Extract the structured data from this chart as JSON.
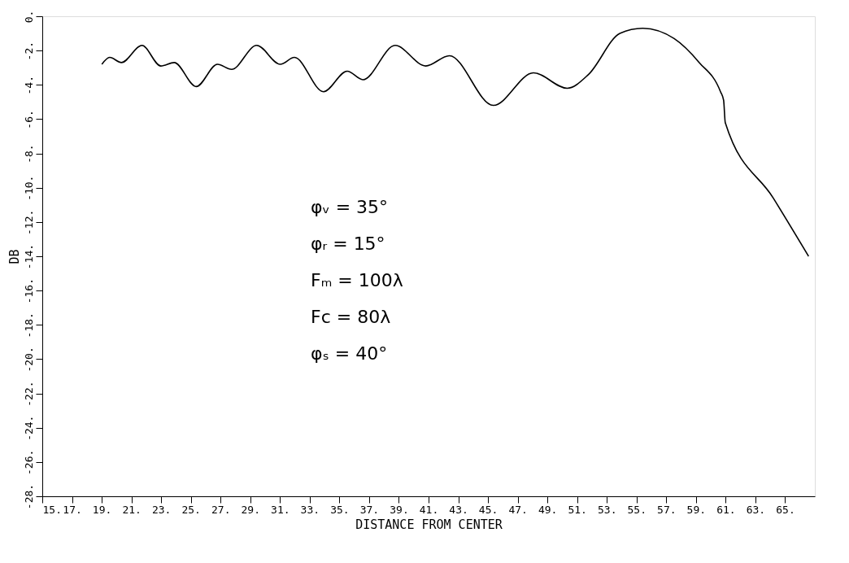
{
  "chart_data": {
    "type": "line",
    "xlabel": "DISTANCE FROM CENTER",
    "ylabel": "DB",
    "x": [
      19.01,
      19.54,
      20.33,
      21.71,
      22.98,
      23.88,
      25.36,
      26.79,
      27.74,
      29.43,
      31.02,
      31.97,
      33.93,
      35.52,
      36.58,
      38.75,
      40.81,
      42.4,
      45.36,
      48.06,
      50.33,
      51.76,
      53.88,
      55.41,
      57.53,
      59.22,
      60.65,
      60.86,
      60.97,
      64.2,
      66.58
    ],
    "series": [
      {
        "color": "#000000",
        "values": [
          -2.8,
          -2.4,
          -2.7,
          -1.7,
          -2.9,
          -2.7,
          -4.1,
          -2.8,
          -3.1,
          -1.7,
          -2.8,
          -2.4,
          -4.4,
          -3.2,
          -3.7,
          -1.7,
          -2.9,
          -2.3,
          -5.2,
          -3.3,
          -4.2,
          -3.4,
          -1.0,
          -0.7,
          -1.3,
          -2.7,
          -4.4,
          -4.9,
          -6.2,
          -10.6,
          -14.0
        ]
      }
    ],
    "xlim": [
      15,
      67
    ],
    "ylim": [
      -28,
      0
    ],
    "xticks": [
      {
        "value": 15,
        "label": "15."
      },
      {
        "value": 17,
        "label": "17."
      },
      {
        "value": 19,
        "label": "19."
      },
      {
        "value": 21,
        "label": "21."
      },
      {
        "value": 23,
        "label": "23."
      },
      {
        "value": 25,
        "label": "25."
      },
      {
        "value": 27,
        "label": "27."
      },
      {
        "value": 29,
        "label": "29."
      },
      {
        "value": 31,
        "label": "31."
      },
      {
        "value": 33,
        "label": "33."
      },
      {
        "value": 35,
        "label": "35."
      },
      {
        "value": 37,
        "label": "37."
      },
      {
        "value": 39,
        "label": "39."
      },
      {
        "value": 41,
        "label": "41."
      },
      {
        "value": 43,
        "label": "43."
      },
      {
        "value": 45,
        "label": "45."
      },
      {
        "value": 47,
        "label": "47."
      },
      {
        "value": 49,
        "label": "49."
      },
      {
        "value": 51,
        "label": "51."
      },
      {
        "value": 53,
        "label": "53."
      },
      {
        "value": 55,
        "label": "55."
      },
      {
        "value": 57,
        "label": "57."
      },
      {
        "value": 59,
        "label": "59."
      },
      {
        "value": 61,
        "label": "61."
      },
      {
        "value": 63,
        "label": "63."
      },
      {
        "value": 65,
        "label": "65."
      }
    ],
    "yticks": [
      {
        "value": 0,
        "label": "0."
      },
      {
        "value": -2,
        "label": "-2."
      },
      {
        "value": -4,
        "label": "-4."
      },
      {
        "value": -6,
        "label": "-6."
      },
      {
        "value": -8,
        "label": "-8."
      },
      {
        "value": -10,
        "label": "-10."
      },
      {
        "value": -12,
        "label": "-12."
      },
      {
        "value": -14,
        "label": "-14."
      },
      {
        "value": -16,
        "label": "-16."
      },
      {
        "value": -18,
        "label": "-18."
      },
      {
        "value": -20,
        "label": "-20."
      },
      {
        "value": -22,
        "label": "-22."
      },
      {
        "value": -24,
        "label": "-24."
      },
      {
        "value": -26,
        "label": "-26."
      },
      {
        "value": -28,
        "label": "-28."
      }
    ],
    "annotations": [
      "φᵥ = 35°",
      "φᵣ = 15°",
      "Fₘ = 100λ",
      "Fc = 80λ",
      "φₛ = 40°"
    ],
    "grid": false,
    "marker": "none",
    "line_style": "solid"
  }
}
